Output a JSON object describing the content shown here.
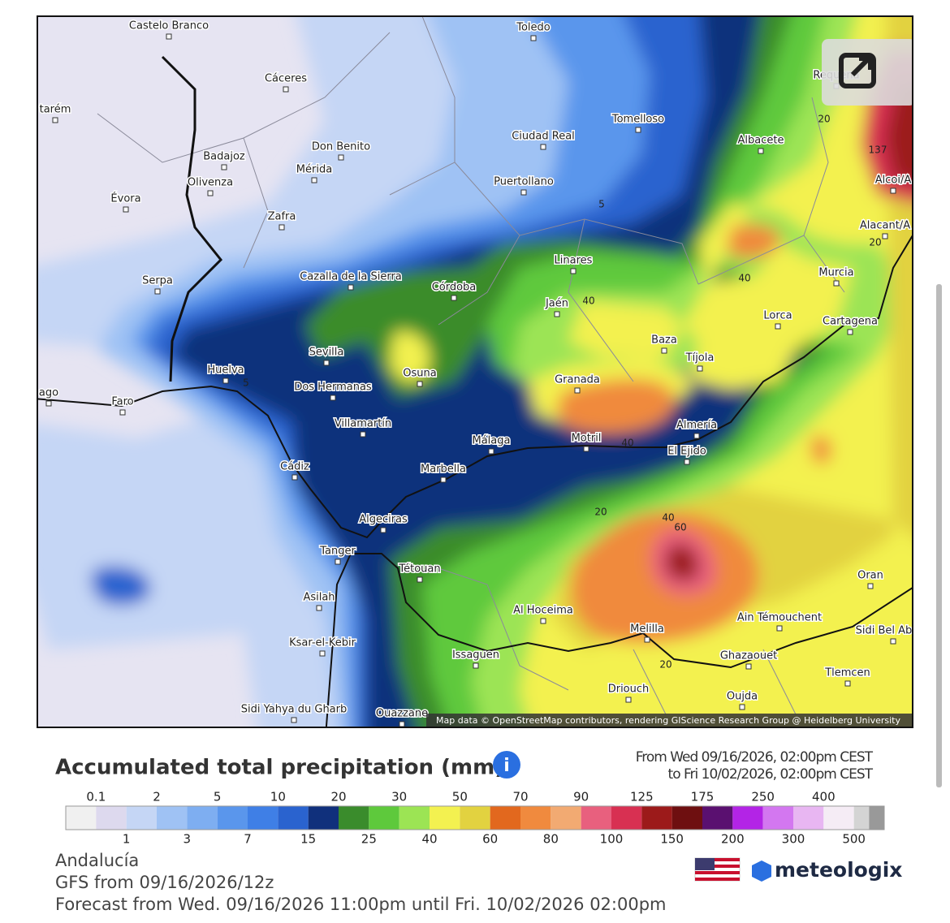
{
  "map": {
    "cities": [
      "Castelo Branco",
      "Toledo",
      "Cáceres",
      "tarém",
      "Badajoz",
      "Don Benito",
      "Mérida",
      "Ciudad Real",
      "Tomelloso",
      "Albacete",
      "Requena",
      "Olivenza",
      "Évora",
      "Puertollano",
      "Zafra",
      "Linares",
      "Serpa",
      "Cazalla de la Sierra",
      "Córdoba",
      "Jaén",
      "Murcia",
      "Lorca",
      "Cartagena",
      "Baza",
      "Sevilla",
      "Tíjola",
      "Huelva",
      "Osuna",
      "Dos Hermanas",
      "Granada",
      "Faro",
      "Villamartín",
      "Almería",
      "Málaga",
      "Motril",
      "El Ejido",
      "Marbella",
      "Cádiz",
      "Algeciras",
      "Tanger",
      "Tétouan",
      "Oran",
      "Asilah",
      "Al Hoceima",
      "Ain Témouchent",
      "Melilla",
      "Sidi Bel Abbès",
      "Ghazaouet",
      "Ksar-el-Kebir",
      "Issaguen",
      "Tlemcen",
      "Driouch",
      "Oujda",
      "Sidi Yahya du Gharb",
      "Ouazzane",
      "Alcoi/A",
      "Alacant/A",
      "Évora",
      "ago"
    ],
    "contour_labels": [
      "5",
      "5",
      "20",
      "20",
      "20",
      "20",
      "40",
      "40",
      "40",
      "40",
      "60",
      "137"
    ],
    "attribution": "Map data © OpenStreetMap contributors, rendering GIScience Research Group @ Heidelberg University"
  },
  "legend": {
    "title": "Accumulated total precipitation (mm)",
    "period_from": "From Wed 09/16/2026, 02:00pm CEST",
    "period_to": "to Fri 10/02/2026, 02:00pm CEST",
    "labels": [
      "0.1",
      "1",
      "2",
      "3",
      "5",
      "7",
      "10",
      "15",
      "20",
      "25",
      "30",
      "40",
      "50",
      "60",
      "70",
      "80",
      "90",
      "100",
      "125",
      "150",
      "175",
      "200",
      "250",
      "300",
      "400",
      "500"
    ],
    "colors": [
      "#f0f0f0",
      "#ddd9ee",
      "#c5d6f5",
      "#9fc2f4",
      "#7eaef1",
      "#5a96ec",
      "#3f7fe6",
      "#2a63cf",
      "#10307c",
      "#3a8c2c",
      "#5ec93c",
      "#9ce454",
      "#f3f150",
      "#e2d240",
      "#e2681e",
      "#f08a3e",
      "#f2aa72",
      "#e8607e",
      "#d83052",
      "#9c1a1a",
      "#6e0f10",
      "#5a1070",
      "#b324e6",
      "#d377f0",
      "#e8b6f2",
      "#f5ecf5",
      "#d4d4d4",
      "#999999"
    ]
  },
  "footer": {
    "region": "Andalucía",
    "model": "GFS from 09/16/2026/12z",
    "forecast": "Forecast from Wed. 09/16/2026 11:00pm until Fri. 10/02/2026 02:00pm",
    "brand": "meteologix"
  }
}
